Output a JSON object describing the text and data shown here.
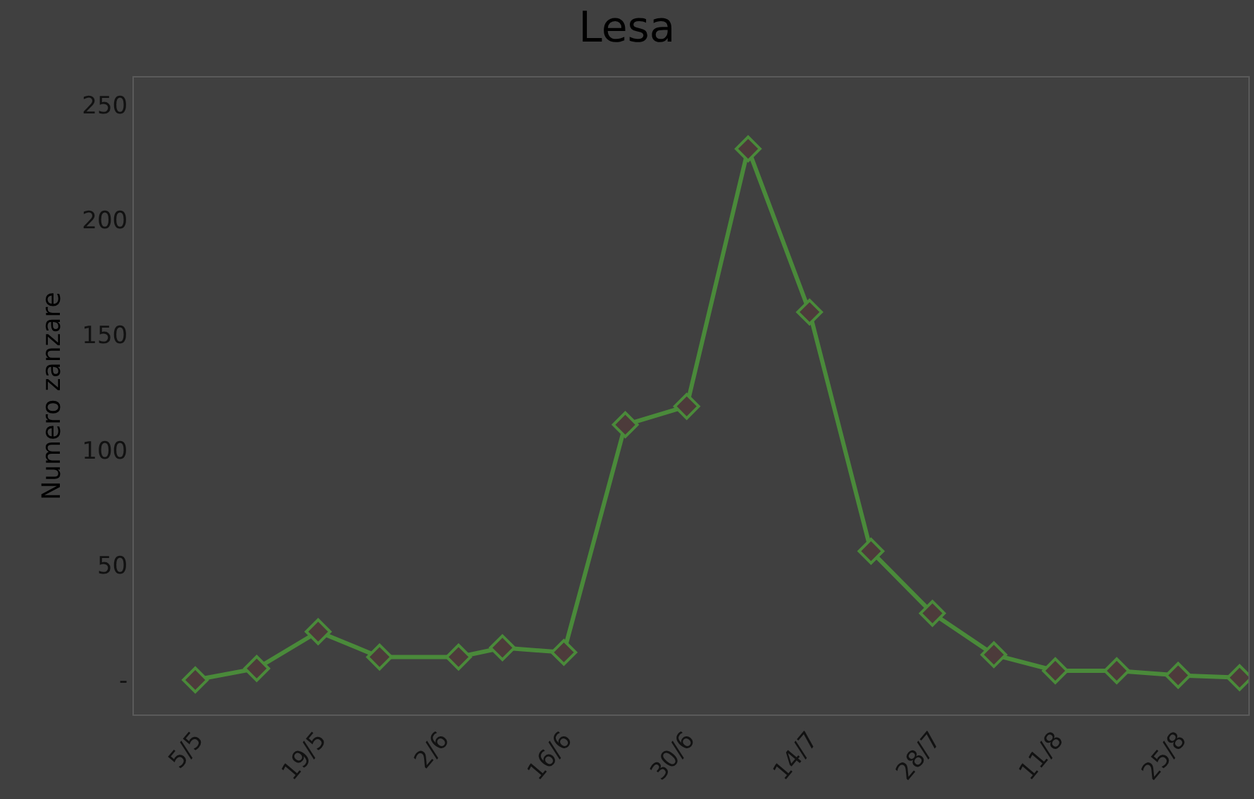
{
  "chart_data": {
    "type": "line",
    "title": "Lesa",
    "ylabel": "Numero zanzare",
    "x": [
      "--05-05",
      "--05-12",
      "--05-19",
      "--05-26",
      "--06-04",
      "--06-09",
      "--06-16",
      "--06-23",
      "--06-30",
      "--07-07",
      "--07-14",
      "--07-21",
      "--07-28",
      "--08-04",
      "--08-11",
      "--08-18",
      "--08-25",
      "--09-01"
    ],
    "series": [
      {
        "color": "#4a8a3a",
        "values": [
          0,
          5,
          21,
          10,
          10,
          14,
          12,
          111,
          119,
          231,
          160,
          56,
          29,
          11,
          4,
          4,
          2,
          1
        ]
      }
    ],
    "xlim": [
      "--04-28",
      "--09-02"
    ],
    "xticks": [
      {
        "value": "--05-05",
        "label": "5/5"
      },
      {
        "value": "--05-19",
        "label": "19/5"
      },
      {
        "value": "--06-02",
        "label": "2/6"
      },
      {
        "value": "--06-16",
        "label": "16/6"
      },
      {
        "value": "--06-30",
        "label": "30/6"
      },
      {
        "value": "--07-14",
        "label": "14/7"
      },
      {
        "value": "--07-28",
        "label": "28/7"
      },
      {
        "value": "--08-11",
        "label": "11/8"
      },
      {
        "value": "--08-25",
        "label": "25/8"
      }
    ],
    "ylim": [
      -15,
      262
    ],
    "yticks": [
      {
        "value": 0,
        "label": "-"
      },
      50,
      100,
      150,
      200,
      250
    ],
    "grid": false,
    "legend": false,
    "marker": "diamond",
    "line_style": "solid"
  }
}
